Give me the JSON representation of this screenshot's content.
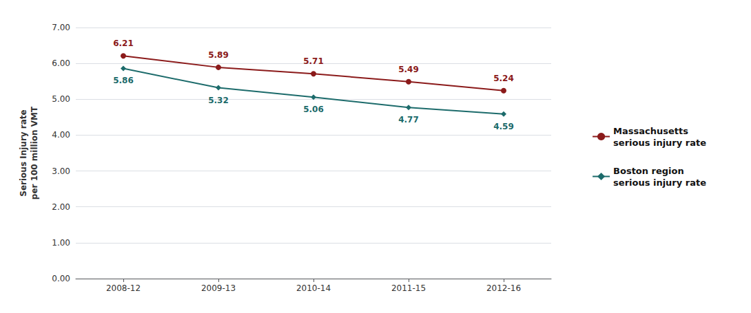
{
  "chart_data": {
    "type": "line",
    "ylabel": "Serious Injury rate\nper 100 million VMT",
    "categories": [
      "2008-12",
      "2009-13",
      "2010-14",
      "2011-15",
      "2012-16"
    ],
    "series": [
      {
        "name": "Massachusetts\nserious injury rate",
        "color": "#8B1A1A",
        "marker": "circle",
        "values": [
          6.21,
          5.89,
          5.71,
          5.49,
          5.24
        ]
      },
      {
        "name": "Boston region\nserious injury rate",
        "color": "#1C6B6B",
        "marker": "diamond",
        "values": [
          5.86,
          5.32,
          5.06,
          4.77,
          4.59
        ]
      }
    ],
    "ylim": [
      0.0,
      7.0
    ],
    "yticks": [
      {
        "value": 0,
        "label": "0.00"
      },
      {
        "value": 1,
        "label": "1.00"
      },
      {
        "value": 2,
        "label": "2.00"
      },
      {
        "value": 3,
        "label": "3.00"
      },
      {
        "value": 4,
        "label": "4.00"
      },
      {
        "value": 5,
        "label": "5.00"
      },
      {
        "value": 6,
        "label": "6.00"
      },
      {
        "value": 7,
        "label": "7.00"
      }
    ],
    "grid": true,
    "legend": "right",
    "data_labels": true
  }
}
